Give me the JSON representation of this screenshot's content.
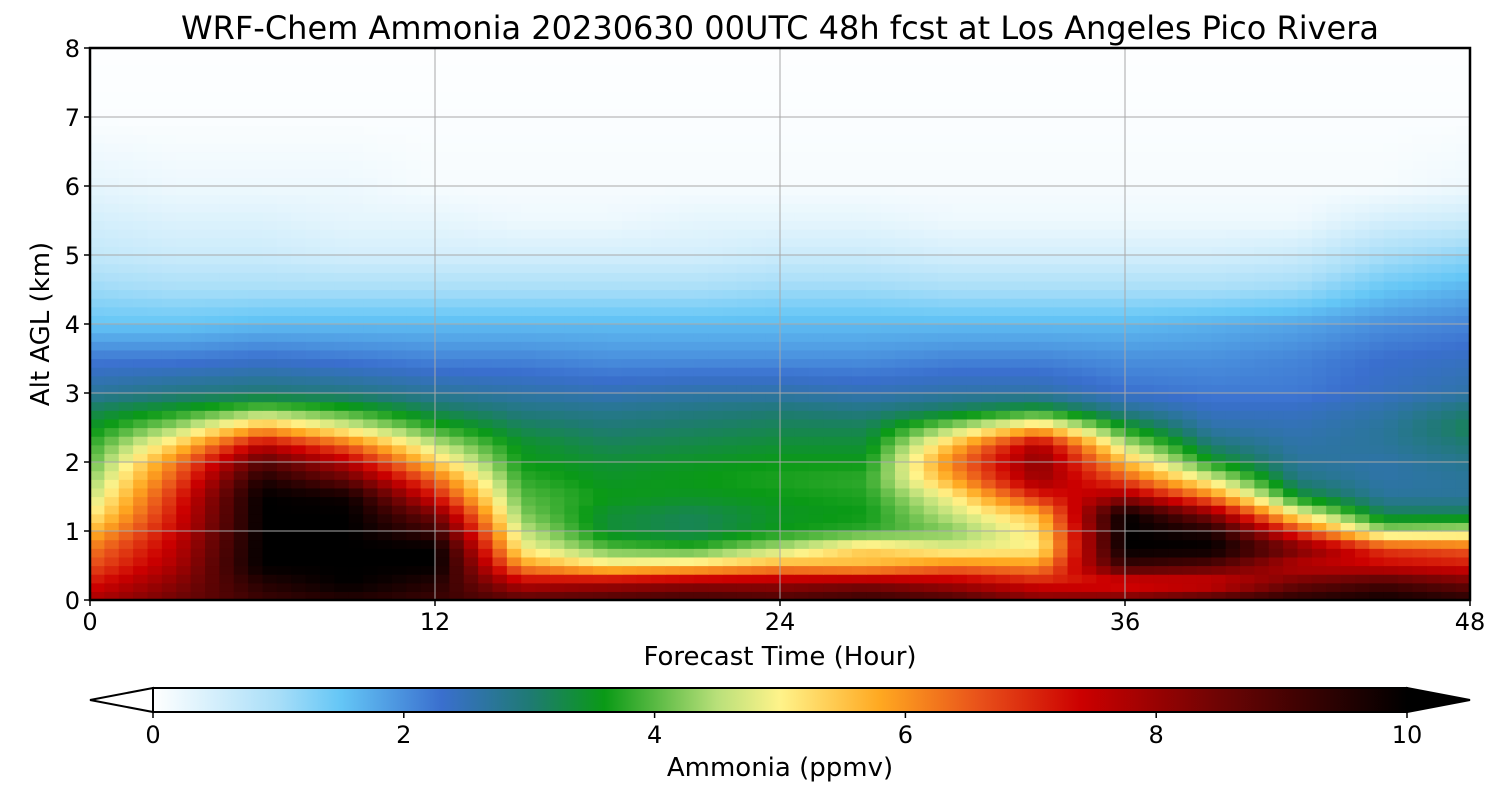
{
  "chart_data": {
    "type": "heatmap",
    "title": "WRF-Chem Ammonia  20230630 00UTC 48h fcst at Los Angeles Pico Rivera",
    "xlabel": "Forecast Time (Hour)",
    "ylabel": "Alt AGL (km)",
    "xlim": [
      0,
      48
    ],
    "ylim": [
      0,
      8
    ],
    "xticks": [
      0,
      12,
      24,
      36,
      48
    ],
    "xtick_labels": [
      "0",
      "12",
      "24",
      "36",
      "48"
    ],
    "yticks": [
      0,
      1,
      2,
      3,
      4,
      5,
      6,
      7,
      8
    ],
    "ytick_labels": [
      "0",
      "1",
      "2",
      "3",
      "4",
      "5",
      "6",
      "7",
      "8"
    ],
    "grid": true,
    "colorbar": {
      "label": "Ammonia  (ppmv)",
      "range": [
        0,
        10
      ],
      "ticks": [
        0,
        2,
        4,
        6,
        8,
        10
      ],
      "tick_labels": [
        "0",
        "2",
        "4",
        "6",
        "8",
        "10"
      ],
      "extend": "both",
      "color_stops": [
        {
          "value": 0,
          "color": "#ffffff"
        },
        {
          "value": 1,
          "color": "#a8def8"
        },
        {
          "value": 1.5,
          "color": "#64c6f6"
        },
        {
          "value": 2.3,
          "color": "#3a6fce"
        },
        {
          "value": 3.0,
          "color": "#1f7a74"
        },
        {
          "value": 3.6,
          "color": "#0a9a16"
        },
        {
          "value": 4.5,
          "color": "#b9e07a"
        },
        {
          "value": 5.0,
          "color": "#fff38a"
        },
        {
          "value": 5.8,
          "color": "#ffa820"
        },
        {
          "value": 6.6,
          "color": "#e8501a"
        },
        {
          "value": 7.4,
          "color": "#cc0000"
        },
        {
          "value": 8.5,
          "color": "#6e0404"
        },
        {
          "value": 10,
          "color": "#000000"
        }
      ]
    },
    "x": [
      0,
      3,
      6,
      9,
      12,
      15,
      18,
      21,
      24,
      27,
      30,
      33,
      36,
      39,
      42,
      45,
      48
    ],
    "y": [
      0,
      0.25,
      0.5,
      0.75,
      1,
      1.25,
      1.5,
      1.75,
      2,
      2.25,
      2.5,
      2.75,
      3,
      3.5,
      4,
      4.5,
      5,
      5.5,
      6,
      7,
      8
    ],
    "values": [
      [
        7.8,
        8.5,
        9.2,
        9.5,
        9.2,
        8.8,
        9.0,
        9.2,
        9.0,
        9.3,
        9.0,
        8.3,
        8.5,
        9.0,
        9.5,
        9.8,
        9.5
      ],
      [
        7.2,
        8.2,
        9.5,
        10,
        9.5,
        7.6,
        7.8,
        8.0,
        8.0,
        8.2,
        7.8,
        7.2,
        7.0,
        7.2,
        8.5,
        9.0,
        8.5
      ],
      [
        6.6,
        7.8,
        10,
        10,
        10,
        6.0,
        5.2,
        5.4,
        5.8,
        5.6,
        6.2,
        6.0,
        9.2,
        8.8,
        7.6,
        7.4,
        7.2
      ],
      [
        6.2,
        7.6,
        10,
        10,
        10,
        5.0,
        4.0,
        3.8,
        4.5,
        5.4,
        4.8,
        5.0,
        10,
        10,
        8.4,
        6.8,
        6.5
      ],
      [
        5.6,
        7.4,
        10,
        10,
        9.2,
        4.6,
        3.4,
        3.2,
        3.6,
        3.8,
        4.2,
        5.2,
        10,
        9.6,
        6.8,
        4.4,
        4.6
      ],
      [
        5.0,
        7.2,
        10,
        10,
        8.4,
        4.2,
        3.4,
        3.2,
        3.5,
        3.6,
        4.6,
        5.6,
        10,
        8.2,
        5.0,
        3.2,
        3.2
      ],
      [
        4.6,
        7.0,
        10,
        9.8,
        7.2,
        4.0,
        3.6,
        3.5,
        3.6,
        3.7,
        5.0,
        7.0,
        8.0,
        6.2,
        3.5,
        2.7,
        2.7
      ],
      [
        4.3,
        6.6,
        9.6,
        8.6,
        6.4,
        3.8,
        3.5,
        3.6,
        3.7,
        3.8,
        5.8,
        8.0,
        6.6,
        4.8,
        2.9,
        2.6,
        2.7
      ],
      [
        4.0,
        6.2,
        8.8,
        7.6,
        5.4,
        3.6,
        3.4,
        3.5,
        3.6,
        3.6,
        6.2,
        8.2,
        5.6,
        3.6,
        2.7,
        2.6,
        2.8
      ],
      [
        3.8,
        5.4,
        7.6,
        6.4,
        4.6,
        3.5,
        3.2,
        3.3,
        3.4,
        3.4,
        5.6,
        7.8,
        4.6,
        3.0,
        2.6,
        2.7,
        3.0
      ],
      [
        3.5,
        4.4,
        5.8,
        4.8,
        3.8,
        3.2,
        3.0,
        3.1,
        3.2,
        3.2,
        4.4,
        5.6,
        3.6,
        2.6,
        2.5,
        2.7,
        3.2
      ],
      [
        3.2,
        3.6,
        4.2,
        3.8,
        3.2,
        2.9,
        2.8,
        2.9,
        3.0,
        2.9,
        3.2,
        3.6,
        2.8,
        2.4,
        2.4,
        2.6,
        3.0
      ],
      [
        2.7,
        2.9,
        3.0,
        2.9,
        2.7,
        2.6,
        2.5,
        2.6,
        2.6,
        2.5,
        2.6,
        2.6,
        2.3,
        2.2,
        2.2,
        2.4,
        2.6
      ],
      [
        2.2,
        2.2,
        2.3,
        2.2,
        2.1,
        2.1,
        2.0,
        2.0,
        2.0,
        2.0,
        2.1,
        2.1,
        2.0,
        2.0,
        2.1,
        2.3,
        2.4
      ],
      [
        1.5,
        1.5,
        1.6,
        1.6,
        1.6,
        1.6,
        1.6,
        1.6,
        1.6,
        1.6,
        1.6,
        1.6,
        1.6,
        1.7,
        1.8,
        2.0,
        2.1
      ],
      [
        1.1,
        1.0,
        1.0,
        1.0,
        1.0,
        1.0,
        1.0,
        1.0,
        1.1,
        1.1,
        1.0,
        1.0,
        1.0,
        1.0,
        1.1,
        1.5,
        1.7
      ],
      [
        0.7,
        0.6,
        0.6,
        0.5,
        0.5,
        0.5,
        0.5,
        0.5,
        0.6,
        0.6,
        0.5,
        0.5,
        0.5,
        0.5,
        0.6,
        1.0,
        1.2
      ],
      [
        0.5,
        0.4,
        0.4,
        0.3,
        0.3,
        0.2,
        0.2,
        0.3,
        0.3,
        0.3,
        0.2,
        0.2,
        0.2,
        0.2,
        0.2,
        0.5,
        0.6
      ],
      [
        0.3,
        0.2,
        0.2,
        0.2,
        0.1,
        0.1,
        0.1,
        0.1,
        0.1,
        0.1,
        0.1,
        0.1,
        0.1,
        0.1,
        0.1,
        0.1,
        0.2
      ],
      [
        0.05,
        0.05,
        0.05,
        0.05,
        0.05,
        0.05,
        0.05,
        0.05,
        0.05,
        0.05,
        0.05,
        0.05,
        0.05,
        0.05,
        0.05,
        0.05,
        0.05
      ],
      [
        0.02,
        0.02,
        0.02,
        0.02,
        0.02,
        0.02,
        0.02,
        0.02,
        0.02,
        0.02,
        0.02,
        0.02,
        0.02,
        0.02,
        0.02,
        0.02,
        0.02
      ]
    ]
  }
}
